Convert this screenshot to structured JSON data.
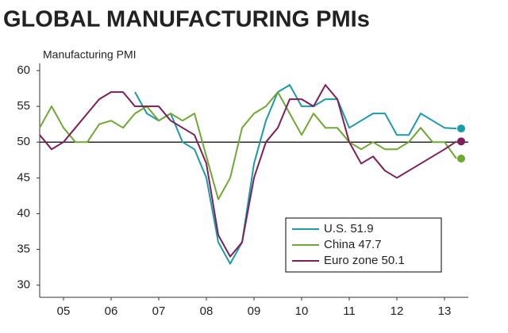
{
  "chart_data": {
    "type": "line",
    "title": "GLOBAL MANUFACTURING PMIs",
    "y_label": "Manufacturing PMI",
    "x": [
      2005.0,
      2005.25,
      2005.5,
      2005.75,
      2006.0,
      2006.25,
      2006.5,
      2006.75,
      2007.0,
      2007.25,
      2007.5,
      2007.75,
      2008.0,
      2008.25,
      2008.5,
      2008.75,
      2009.0,
      2009.25,
      2009.5,
      2009.75,
      2010.0,
      2010.25,
      2010.5,
      2010.75,
      2011.0,
      2011.25,
      2011.5,
      2011.75,
      2012.0,
      2012.25,
      2012.5,
      2012.75,
      2013.0,
      2013.25,
      2013.5,
      2013.75
    ],
    "series": [
      {
        "name": "U.S. 51.9",
        "color": "#1b9aaa",
        "values": [
          null,
          null,
          null,
          null,
          null,
          null,
          null,
          null,
          57,
          54,
          53,
          54,
          50,
          49,
          45,
          36,
          33,
          36,
          47,
          53,
          57,
          58,
          55,
          55,
          56,
          56,
          52,
          53,
          54,
          54,
          51,
          51,
          54,
          53,
          52,
          51.9
        ]
      },
      {
        "name": "China 47.7",
        "color": "#6fa832",
        "values": [
          52,
          55,
          52,
          50,
          50,
          52.5,
          53,
          52,
          54,
          55,
          53,
          54,
          53,
          54,
          48,
          42,
          45,
          52,
          54,
          55,
          57,
          54,
          51,
          54,
          52,
          52,
          50,
          49,
          50,
          49,
          49,
          50,
          52,
          50,
          50,
          47.7
        ]
      },
      {
        "name": "Euro zone 50.1",
        "color": "#7d1f5a",
        "values": [
          51,
          49,
          50,
          52,
          54,
          56,
          57,
          57,
          55,
          55,
          55,
          53,
          52,
          51,
          47,
          37,
          34,
          36,
          45,
          50,
          52,
          56,
          56,
          55,
          58,
          56,
          50,
          47,
          48,
          46,
          45,
          46,
          47,
          48,
          49,
          50.1
        ]
      }
    ],
    "xlim": [
      2005,
      2014
    ],
    "xticks": [
      {
        "value": 2005.5,
        "label": "05"
      },
      {
        "value": 2006.5,
        "label": "06"
      },
      {
        "value": 2007.5,
        "label": "07"
      },
      {
        "value": 2008.5,
        "label": "08"
      },
      {
        "value": 2009.5,
        "label": "09"
      },
      {
        "value": 2010.5,
        "label": "10"
      },
      {
        "value": 2011.5,
        "label": "11"
      },
      {
        "value": 2012.5,
        "label": "12"
      },
      {
        "value": 2013.5,
        "label": "13"
      }
    ],
    "ylim": [
      28.3,
      61
    ],
    "yticks": [
      30,
      35,
      40,
      45,
      50,
      55,
      60
    ],
    "reference_line": 50,
    "legend": "lower right",
    "grid": false
  }
}
